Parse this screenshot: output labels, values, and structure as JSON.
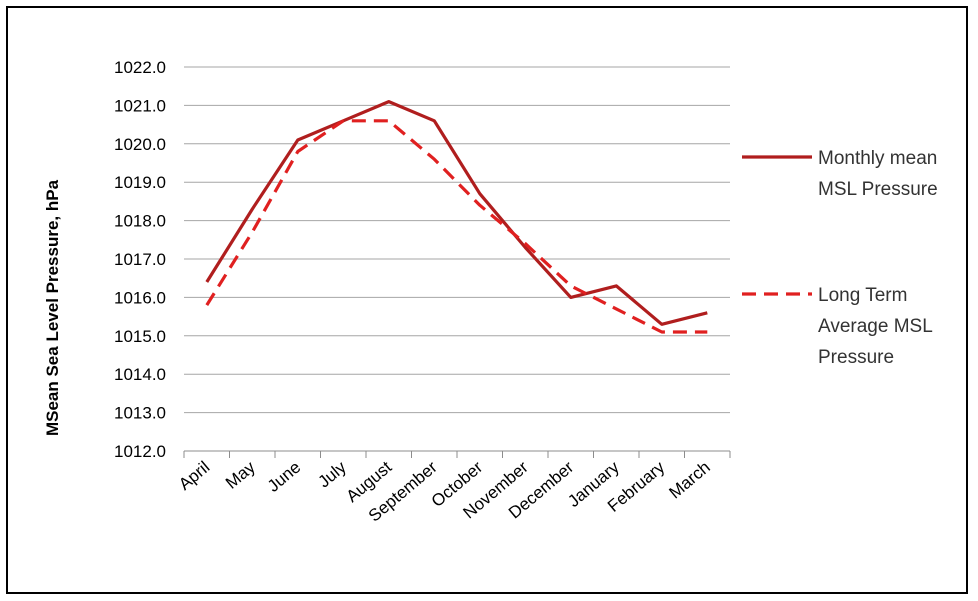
{
  "chart_data": {
    "type": "line",
    "ylabel": "MSean Sea Level Pressure, hPa",
    "xlabel": "",
    "title": "",
    "categories": [
      "April",
      "May",
      "June",
      "July",
      "August",
      "September",
      "October",
      "November",
      "December",
      "January",
      "February",
      "March"
    ],
    "ylim": [
      1012.0,
      1022.0
    ],
    "yticks": [
      "1012.0",
      "1013.0",
      "1014.0",
      "1015.0",
      "1016.0",
      "1017.0",
      "1018.0",
      "1019.0",
      "1020.0",
      "1021.0",
      "1022.0"
    ],
    "grid": true,
    "legend_position": "right",
    "series": [
      {
        "name": "Monthly mean MSL Pressure",
        "legend_lines": [
          "Monthly mean",
          "MSL Pressure"
        ],
        "style": "solid",
        "color": "#b01e1e",
        "values": [
          1016.4,
          1018.3,
          1020.1,
          1020.6,
          1021.1,
          1020.6,
          1018.7,
          1017.3,
          1016.0,
          1016.3,
          1015.3,
          1015.6
        ]
      },
      {
        "name": "Long Term Average MSL Pressure",
        "legend_lines": [
          "Long Term",
          "Average  MSL",
          "Pressure"
        ],
        "style": "dashed",
        "color": "#e02020",
        "values": [
          1015.8,
          1017.7,
          1019.8,
          1020.6,
          1020.6,
          1019.6,
          1018.4,
          1017.4,
          1016.3,
          1015.7,
          1015.1,
          1015.1
        ]
      }
    ]
  }
}
